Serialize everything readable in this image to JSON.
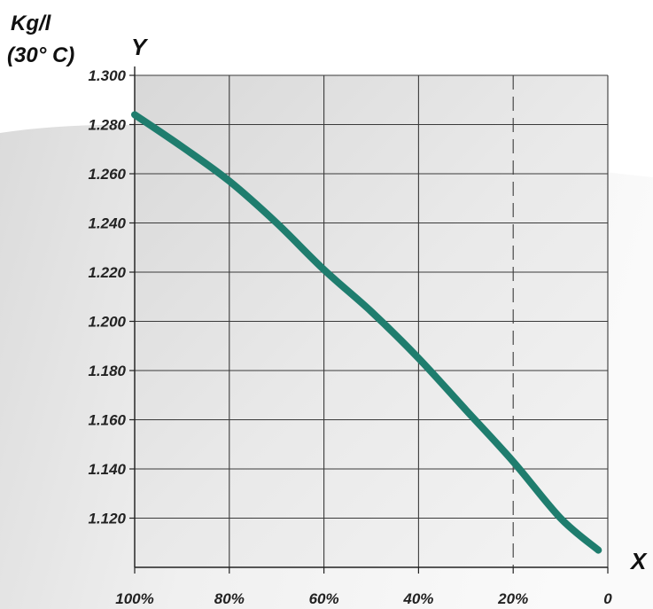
{
  "chart_data": {
    "type": "line",
    "title": "",
    "y_unit_line1": "Kg/l",
    "y_unit_line2": "(30° C)",
    "ylabel": "Y",
    "xlabel": "X",
    "x_ticks": [
      100,
      80,
      60,
      40,
      20,
      0
    ],
    "x_tick_labels": [
      "100%",
      "80%",
      "60%",
      "40%",
      "20%",
      "0"
    ],
    "xlim": [
      100,
      0
    ],
    "y_ticks": [
      1.12,
      1.14,
      1.16,
      1.18,
      1.2,
      1.22,
      1.24,
      1.26,
      1.28,
      1.3
    ],
    "y_tick_labels": [
      "1.120",
      "1.140",
      "1.160",
      "1.180",
      "1.200",
      "1.220",
      "1.240",
      "1.260",
      "1.280",
      "1.300"
    ],
    "ylim": [
      1.1,
      1.3
    ],
    "grid": true,
    "dashed_reference_x": 20,
    "series": [
      {
        "color": "#1f7d6e",
        "x": [
          100,
          90,
          80,
          70,
          60,
          50,
          40,
          30,
          20,
          10,
          2
        ],
        "y": [
          1.284,
          1.271,
          1.257,
          1.24,
          1.221,
          1.204,
          1.185,
          1.164,
          1.143,
          1.12,
          1.107
        ]
      }
    ]
  }
}
